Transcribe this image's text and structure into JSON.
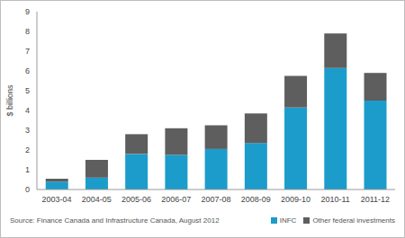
{
  "chart_data": {
    "type": "bar",
    "y_label": "$ billions",
    "source": "Source: Finance Canada and Infrastructure Canada, August 2012",
    "categories": [
      "2003-04",
      "2004-05",
      "2005-06",
      "2006-07",
      "2007-08",
      "2008-09",
      "2009-10",
      "2010-11",
      "2011-12"
    ],
    "series": [
      {
        "name": "INFC",
        "color": "#1b9ccb",
        "values": [
          0.4,
          0.6,
          1.8,
          1.75,
          2.05,
          2.35,
          4.15,
          6.15,
          4.5
        ]
      },
      {
        "name": "Other federal investments",
        "color": "#5e5e5e",
        "values": [
          0.15,
          0.9,
          1.0,
          1.35,
          1.2,
          1.5,
          1.6,
          1.75,
          1.4
        ]
      }
    ],
    "ylim": [
      0,
      9
    ],
    "yticks": [
      0,
      1,
      2,
      3,
      4,
      5,
      6,
      7,
      8,
      9
    ],
    "stacked": true,
    "grid": false,
    "legend": "bottom right"
  }
}
